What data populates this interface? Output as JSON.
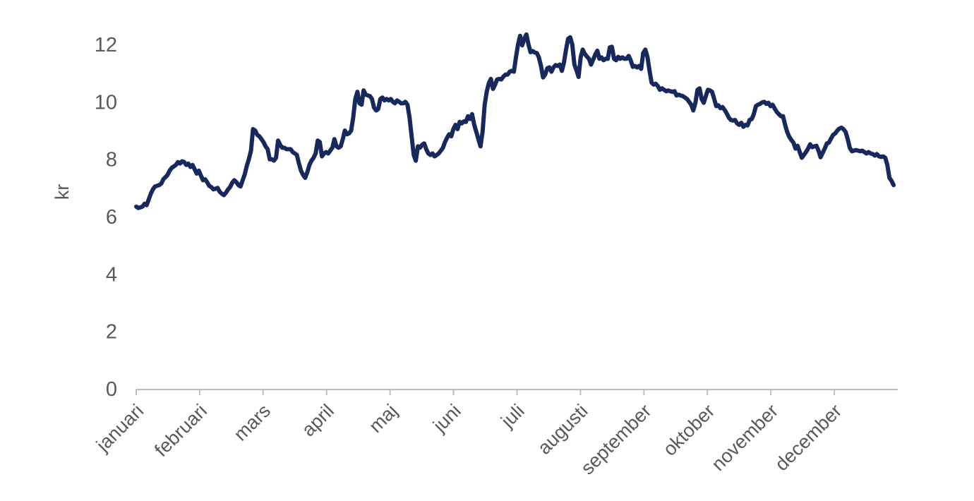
{
  "chart_data": {
    "type": "line",
    "title": "",
    "xlabel": "",
    "ylabel": "kr",
    "unit": "kr",
    "grid": false,
    "legend": null,
    "x_tick_labels": [
      "januari",
      "februari",
      "mars",
      "april",
      "maj",
      "juni",
      "juli",
      "augusti",
      "september",
      "oktober",
      "november",
      "december"
    ],
    "y_ticks": [
      0,
      2,
      4,
      6,
      8,
      10,
      12
    ],
    "ylim": [
      0,
      12.8
    ],
    "xlim_days": [
      0,
      365
    ],
    "line_color": "#17295c",
    "axis_color": "#bdbdbd",
    "text_color": "#595959",
    "points": [
      [
        0,
        6.35
      ],
      [
        1,
        6.3
      ],
      [
        3,
        6.35
      ],
      [
        4,
        6.45
      ],
      [
        5,
        6.4
      ],
      [
        6,
        6.6
      ],
      [
        7,
        6.8
      ],
      [
        8,
        6.95
      ],
      [
        9,
        7.05
      ],
      [
        11,
        7.1
      ],
      [
        12,
        7.15
      ],
      [
        13,
        7.3
      ],
      [
        15,
        7.45
      ],
      [
        16,
        7.6
      ],
      [
        17,
        7.7
      ],
      [
        19,
        7.8
      ],
      [
        20,
        7.9
      ],
      [
        21,
        7.85
      ],
      [
        22,
        7.93
      ],
      [
        23,
        7.9
      ],
      [
        24,
        7.8
      ],
      [
        25,
        7.85
      ],
      [
        26,
        7.73
      ],
      [
        27,
        7.8
      ],
      [
        28,
        7.65
      ],
      [
        29,
        7.5
      ],
      [
        30,
        7.6
      ],
      [
        31,
        7.43
      ],
      [
        32,
        7.27
      ],
      [
        33,
        7.3
      ],
      [
        34,
        7.2
      ],
      [
        35,
        7.07
      ],
      [
        36,
        7.03
      ],
      [
        37,
        6.95
      ],
      [
        39,
        7.0
      ],
      [
        40,
        6.87
      ],
      [
        41,
        6.8
      ],
      [
        42,
        6.75
      ],
      [
        43,
        6.83
      ],
      [
        44,
        6.95
      ],
      [
        45,
        7.03
      ],
      [
        46,
        7.18
      ],
      [
        47,
        7.27
      ],
      [
        48,
        7.2
      ],
      [
        49,
        7.1
      ],
      [
        50,
        7.05
      ],
      [
        51,
        7.27
      ],
      [
        52,
        7.47
      ],
      [
        53,
        7.77
      ],
      [
        54,
        8.0
      ],
      [
        55,
        8.3
      ],
      [
        56,
        9.05
      ],
      [
        57,
        9.0
      ],
      [
        58,
        8.85
      ],
      [
        59,
        8.8
      ],
      [
        60,
        8.7
      ],
      [
        61,
        8.6
      ],
      [
        62,
        8.45
      ],
      [
        63,
        8.35
      ],
      [
        64,
        8.0
      ],
      [
        65,
        8.0
      ],
      [
        66,
        7.95
      ],
      [
        67,
        8.05
      ],
      [
        68,
        8.65
      ],
      [
        69,
        8.5
      ],
      [
        70,
        8.4
      ],
      [
        71,
        8.4
      ],
      [
        72,
        8.35
      ],
      [
        73,
        8.35
      ],
      [
        74,
        8.35
      ],
      [
        75,
        8.25
      ],
      [
        76,
        8.2
      ],
      [
        77,
        8.15
      ],
      [
        78,
        7.85
      ],
      [
        79,
        7.6
      ],
      [
        80,
        7.45
      ],
      [
        81,
        7.35
      ],
      [
        82,
        7.55
      ],
      [
        83,
        7.8
      ],
      [
        84,
        7.95
      ],
      [
        85,
        8.05
      ],
      [
        86,
        8.2
      ],
      [
        87,
        8.65
      ],
      [
        88,
        8.6
      ],
      [
        89,
        8.1
      ],
      [
        90,
        8.2
      ],
      [
        91,
        8.25
      ],
      [
        92,
        8.2
      ],
      [
        93,
        8.3
      ],
      [
        94,
        8.4
      ],
      [
        95,
        8.7
      ],
      [
        96,
        8.45
      ],
      [
        97,
        8.4
      ],
      [
        98,
        8.45
      ],
      [
        99,
        8.7
      ],
      [
        100,
        9.0
      ],
      [
        101,
        8.87
      ],
      [
        102,
        8.9
      ],
      [
        103,
        9.0
      ],
      [
        104,
        9.45
      ],
      [
        105,
        10.1
      ],
      [
        106,
        10.35
      ],
      [
        107,
        9.95
      ],
      [
        108,
        9.9
      ],
      [
        109,
        10.4
      ],
      [
        110,
        10.25
      ],
      [
        112,
        10.2
      ],
      [
        113,
        10.1
      ],
      [
        114,
        9.8
      ],
      [
        115,
        9.7
      ],
      [
        116,
        9.75
      ],
      [
        117,
        10.1
      ],
      [
        118,
        10.15
      ],
      [
        119,
        10.05
      ],
      [
        120,
        10.1
      ],
      [
        121,
        10.05
      ],
      [
        122,
        10.1
      ],
      [
        123,
        10.0
      ],
      [
        124,
        9.95
      ],
      [
        125,
        10.05
      ],
      [
        126,
        10.0
      ],
      [
        127,
        9.95
      ],
      [
        128,
        9.95
      ],
      [
        129,
        10.0
      ],
      [
        130,
        9.9
      ],
      [
        131,
        9.45
      ],
      [
        132,
        8.8
      ],
      [
        133,
        8.15
      ],
      [
        134,
        7.95
      ],
      [
        135,
        8.45
      ],
      [
        136,
        8.4
      ],
      [
        137,
        8.5
      ],
      [
        138,
        8.55
      ],
      [
        139,
        8.35
      ],
      [
        140,
        8.2
      ],
      [
        141,
        8.15
      ],
      [
        142,
        8.2
      ],
      [
        143,
        8.1
      ],
      [
        144,
        8.15
      ],
      [
        145,
        8.2
      ],
      [
        146,
        8.3
      ],
      [
        147,
        8.4
      ],
      [
        148,
        8.6
      ],
      [
        149,
        8.75
      ],
      [
        150,
        8.87
      ],
      [
        151,
        8.8
      ],
      [
        152,
        9.05
      ],
      [
        153,
        9.2
      ],
      [
        154,
        9.05
      ],
      [
        155,
        9.3
      ],
      [
        156,
        9.25
      ],
      [
        157,
        9.32
      ],
      [
        158,
        9.3
      ],
      [
        159,
        9.5
      ],
      [
        160,
        9.4
      ],
      [
        161,
        9.57
      ],
      [
        162,
        9.2
      ],
      [
        163,
        8.95
      ],
      [
        164,
        8.7
      ],
      [
        165,
        8.45
      ],
      [
        166,
        8.95
      ],
      [
        167,
        9.9
      ],
      [
        168,
        10.35
      ],
      [
        169,
        10.65
      ],
      [
        170,
        10.8
      ],
      [
        171,
        10.45
      ],
      [
        172,
        10.6
      ],
      [
        173,
        10.78
      ],
      [
        174,
        10.8
      ],
      [
        175,
        10.78
      ],
      [
        176,
        10.88
      ],
      [
        177,
        10.95
      ],
      [
        178,
        10.95
      ],
      [
        179,
        11.05
      ],
      [
        180,
        11.08
      ],
      [
        181,
        11.05
      ],
      [
        182,
        11.55
      ],
      [
        183,
        12.0
      ],
      [
        184,
        12.3
      ],
      [
        185,
        11.97
      ],
      [
        186,
        12.2
      ],
      [
        187,
        12.35
      ],
      [
        188,
        12.0
      ],
      [
        189,
        11.73
      ],
      [
        190,
        11.77
      ],
      [
        191,
        11.72
      ],
      [
        192,
        11.7
      ],
      [
        193,
        11.55
      ],
      [
        194,
        11.25
      ],
      [
        195,
        10.85
      ],
      [
        196,
        10.95
      ],
      [
        197,
        11.17
      ],
      [
        198,
        11.2
      ],
      [
        199,
        11.05
      ],
      [
        200,
        11.2
      ],
      [
        201,
        11.28
      ],
      [
        202,
        11.25
      ],
      [
        203,
        11.3
      ],
      [
        204,
        11.08
      ],
      [
        205,
        11.37
      ],
      [
        206,
        11.82
      ],
      [
        207,
        12.2
      ],
      [
        208,
        12.25
      ],
      [
        209,
        12.0
      ],
      [
        210,
        11.3
      ],
      [
        211,
        11.1
      ],
      [
        212,
        10.87
      ],
      [
        213,
        11.55
      ],
      [
        214,
        11.82
      ],
      [
        215,
        11.67
      ],
      [
        216,
        11.58
      ],
      [
        217,
        11.5
      ],
      [
        218,
        11.3
      ],
      [
        219,
        11.47
      ],
      [
        220,
        11.65
      ],
      [
        221,
        11.78
      ],
      [
        222,
        11.5
      ],
      [
        223,
        11.55
      ],
      [
        224,
        11.45
      ],
      [
        225,
        11.5
      ],
      [
        226,
        11.5
      ],
      [
        227,
        11.9
      ],
      [
        228,
        11.92
      ],
      [
        229,
        11.5
      ],
      [
        230,
        11.45
      ],
      [
        231,
        11.57
      ],
      [
        232,
        11.5
      ],
      [
        233,
        11.55
      ],
      [
        234,
        11.5
      ],
      [
        235,
        11.5
      ],
      [
        236,
        11.6
      ],
      [
        237,
        11.45
      ],
      [
        238,
        11.22
      ],
      [
        239,
        11.25
      ],
      [
        240,
        11.2
      ],
      [
        241,
        11.25
      ],
      [
        242,
        11.15
      ],
      [
        243,
        11.7
      ],
      [
        244,
        11.82
      ],
      [
        245,
        11.57
      ],
      [
        246,
        11.1
      ],
      [
        247,
        10.67
      ],
      [
        248,
        10.6
      ],
      [
        249,
        10.63
      ],
      [
        250,
        10.55
      ],
      [
        251,
        10.42
      ],
      [
        252,
        10.47
      ],
      [
        253,
        10.42
      ],
      [
        254,
        10.37
      ],
      [
        255,
        10.4
      ],
      [
        256,
        10.37
      ],
      [
        257,
        10.35
      ],
      [
        258,
        10.37
      ],
      [
        259,
        10.22
      ],
      [
        260,
        10.25
      ],
      [
        261,
        10.22
      ],
      [
        262,
        10.2
      ],
      [
        263,
        10.15
      ],
      [
        264,
        10.1
      ],
      [
        265,
        10.0
      ],
      [
        266,
        9.9
      ],
      [
        267,
        9.7
      ],
      [
        268,
        9.97
      ],
      [
        269,
        10.42
      ],
      [
        270,
        10.47
      ],
      [
        271,
        10.1
      ],
      [
        272,
        9.97
      ],
      [
        273,
        10.2
      ],
      [
        274,
        10.42
      ],
      [
        275,
        10.4
      ],
      [
        276,
        10.35
      ],
      [
        277,
        10.1
      ],
      [
        278,
        9.85
      ],
      [
        279,
        9.88
      ],
      [
        280,
        9.78
      ],
      [
        281,
        9.82
      ],
      [
        282,
        9.72
      ],
      [
        283,
        9.6
      ],
      [
        284,
        9.45
      ],
      [
        285,
        9.37
      ],
      [
        286,
        9.35
      ],
      [
        287,
        9.37
      ],
      [
        288,
        9.25
      ],
      [
        289,
        9.2
      ],
      [
        290,
        9.27
      ],
      [
        291,
        9.13
      ],
      [
        292,
        9.2
      ],
      [
        293,
        9.18
      ],
      [
        294,
        9.37
      ],
      [
        295,
        9.4
      ],
      [
        296,
        9.57
      ],
      [
        297,
        9.85
      ],
      [
        298,
        9.9
      ],
      [
        299,
        9.93
      ],
      [
        300,
        9.98
      ],
      [
        301,
        10.0
      ],
      [
        302,
        9.93
      ],
      [
        303,
        9.97
      ],
      [
        304,
        9.85
      ],
      [
        305,
        9.9
      ],
      [
        306,
        9.77
      ],
      [
        307,
        9.65
      ],
      [
        308,
        9.57
      ],
      [
        309,
        9.5
      ],
      [
        310,
        9.5
      ],
      [
        311,
        9.2
      ],
      [
        312,
        8.95
      ],
      [
        313,
        8.78
      ],
      [
        314,
        8.67
      ],
      [
        315,
        8.58
      ],
      [
        316,
        8.37
      ],
      [
        317,
        8.47
      ],
      [
        318,
        8.25
      ],
      [
        319,
        8.05
      ],
      [
        320,
        8.15
      ],
      [
        321,
        8.25
      ],
      [
        322,
        8.37
      ],
      [
        323,
        8.52
      ],
      [
        324,
        8.42
      ],
      [
        325,
        8.45
      ],
      [
        326,
        8.47
      ],
      [
        327,
        8.3
      ],
      [
        328,
        8.07
      ],
      [
        329,
        8.22
      ],
      [
        330,
        8.37
      ],
      [
        331,
        8.55
      ],
      [
        332,
        8.58
      ],
      [
        333,
        8.72
      ],
      [
        334,
        8.85
      ],
      [
        335,
        8.9
      ],
      [
        336,
        9.0
      ],
      [
        337,
        9.07
      ],
      [
        338,
        9.1
      ],
      [
        339,
        9.05
      ],
      [
        340,
        8.95
      ],
      [
        341,
        8.7
      ],
      [
        342,
        8.4
      ],
      [
        343,
        8.28
      ],
      [
        345,
        8.32
      ],
      [
        346,
        8.3
      ],
      [
        347,
        8.28
      ],
      [
        348,
        8.3
      ],
      [
        349,
        8.25
      ],
      [
        350,
        8.2
      ],
      [
        351,
        8.25
      ],
      [
        352,
        8.2
      ],
      [
        353,
        8.18
      ],
      [
        354,
        8.13
      ],
      [
        355,
        8.18
      ],
      [
        356,
        8.1
      ],
      [
        357,
        8.08
      ],
      [
        358,
        8.1
      ],
      [
        359,
        8.05
      ],
      [
        360,
        7.8
      ],
      [
        361,
        7.35
      ],
      [
        362,
        7.25
      ],
      [
        363,
        7.1
      ]
    ]
  }
}
